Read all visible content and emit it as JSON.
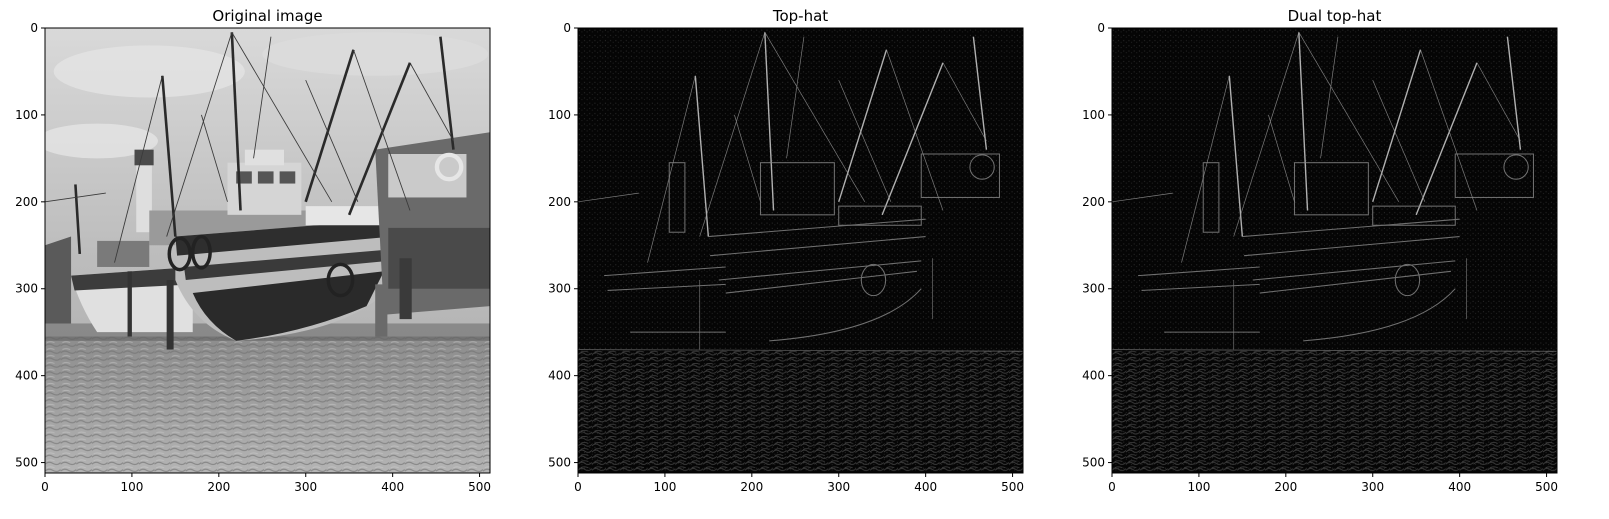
{
  "chart_data": [
    {
      "type": "image",
      "title": "Original image",
      "xlim": [
        0,
        512
      ],
      "ylim": [
        512,
        0
      ],
      "xticks": [
        0,
        100,
        200,
        300,
        400,
        500
      ],
      "yticks": [
        0,
        100,
        200,
        300,
        400,
        500
      ],
      "colormap": "gray",
      "content": "grayscale photo of fishing boats on a beach"
    },
    {
      "type": "image",
      "title": "Top-hat",
      "xlim": [
        0,
        512
      ],
      "ylim": [
        512,
        0
      ],
      "xticks": [
        0,
        100,
        200,
        300,
        400,
        500
      ],
      "yticks": [
        0,
        100,
        200,
        300,
        400,
        500
      ],
      "colormap": "gray",
      "content": "top-hat filtered image, mostly dark with bright edges"
    },
    {
      "type": "image",
      "title": "Dual top-hat",
      "xlim": [
        0,
        512
      ],
      "ylim": [
        512,
        0
      ],
      "xticks": [
        0,
        100,
        200,
        300,
        400,
        500
      ],
      "yticks": [
        0,
        100,
        200,
        300,
        400,
        500
      ],
      "colormap": "gray",
      "content": "dual top-hat filtered image, mostly dark with bright edges"
    }
  ]
}
